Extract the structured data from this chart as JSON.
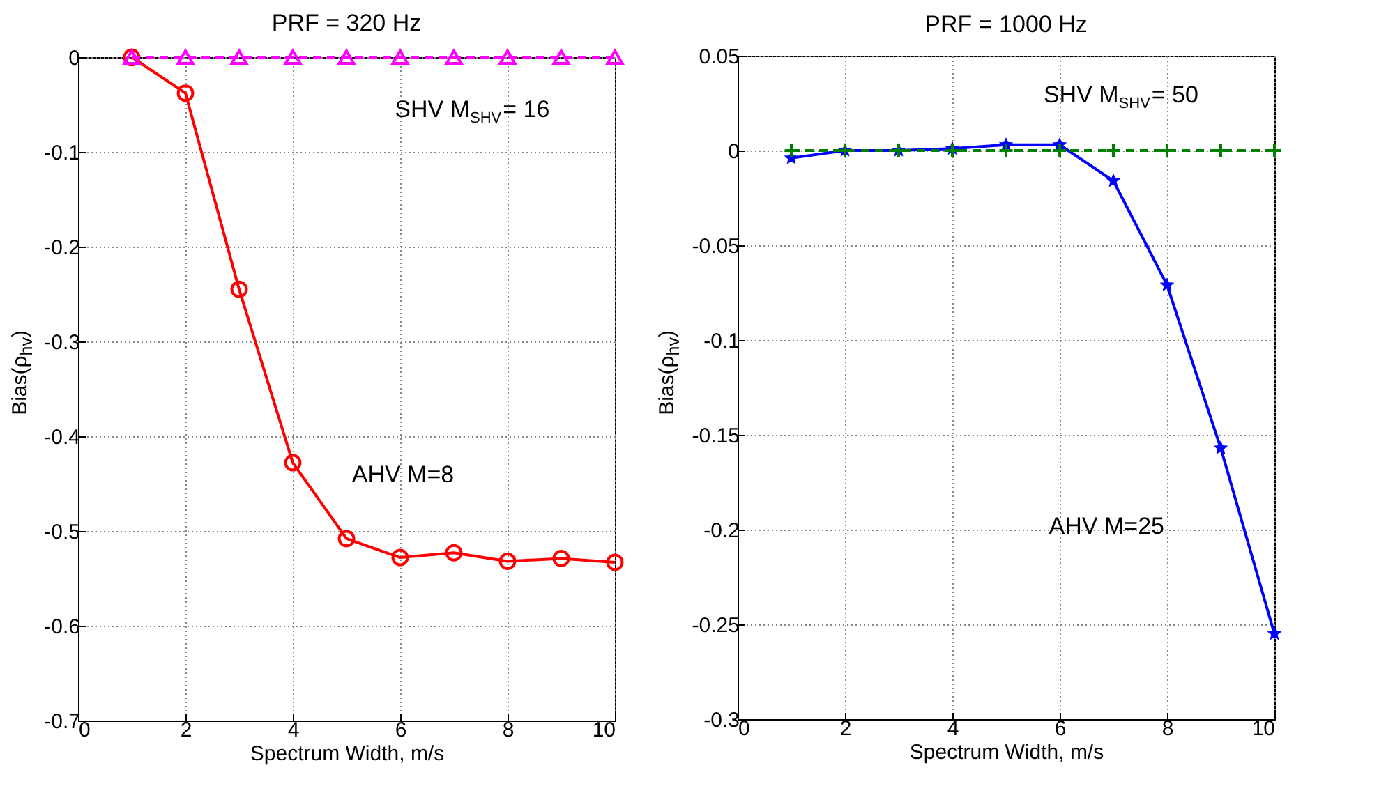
{
  "chart_data": [
    {
      "type": "line",
      "title": "PRF = 320 Hz",
      "xlabel": "Spectrum Width, m/s",
      "ylabel": "Bias(ρ$_{hv}$)",
      "x": [
        1,
        2,
        3,
        4,
        5,
        6,
        7,
        8,
        9,
        10
      ],
      "xlim": [
        0,
        10
      ],
      "xticks": [
        0,
        2,
        4,
        6,
        8,
        10
      ],
      "ylim": [
        -0.7,
        0
      ],
      "yticks": [
        -0.7,
        -0.6,
        -0.5,
        -0.4,
        -0.3,
        -0.2,
        -0.1,
        0
      ],
      "grid": true,
      "series": [
        {
          "color": "#ff0000",
          "marker": "circle",
          "line_style": "solid",
          "values": [
            0,
            -0.038,
            -0.245,
            -0.428,
            -0.508,
            -0.528,
            -0.523,
            -0.532,
            -0.529,
            -0.533
          ]
        },
        {
          "color": "#ff00ff",
          "marker": "triangle",
          "line_style": "dashed",
          "values": [
            0,
            0,
            0,
            0,
            0,
            0,
            0,
            0,
            0,
            0
          ]
        }
      ],
      "annotations": [
        "SHV M$_{SHV}$= 16",
        "AHV M=8"
      ]
    },
    {
      "type": "line",
      "title": "PRF = 1000 Hz",
      "xlabel": "Spectrum Width, m/s",
      "ylabel": "Bias(ρ$_{hv}$)",
      "x": [
        1,
        2,
        3,
        4,
        5,
        6,
        7,
        8,
        9,
        10
      ],
      "xlim": [
        0,
        10
      ],
      "xticks": [
        0,
        2,
        4,
        6,
        8,
        10
      ],
      "ylim": [
        -0.3,
        0.05
      ],
      "yticks": [
        -0.3,
        -0.25,
        -0.2,
        -0.15,
        -0.1,
        -0.05,
        0,
        0.05
      ],
      "grid": true,
      "series": [
        {
          "color": "#0000ff",
          "marker": "star",
          "line_style": "solid",
          "values": [
            -0.004,
            0,
            0,
            0.001,
            0.003,
            0.003,
            -0.016,
            -0.071,
            -0.157,
            -0.255
          ]
        },
        {
          "color": "#008000",
          "marker": "cross",
          "line_style": "dashed",
          "values": [
            0,
            0,
            0,
            0,
            0,
            0,
            0,
            0,
            0,
            0
          ]
        }
      ],
      "annotations": [
        "SHV M$_{SHV}$= 50",
        "AHV M=25"
      ]
    }
  ]
}
